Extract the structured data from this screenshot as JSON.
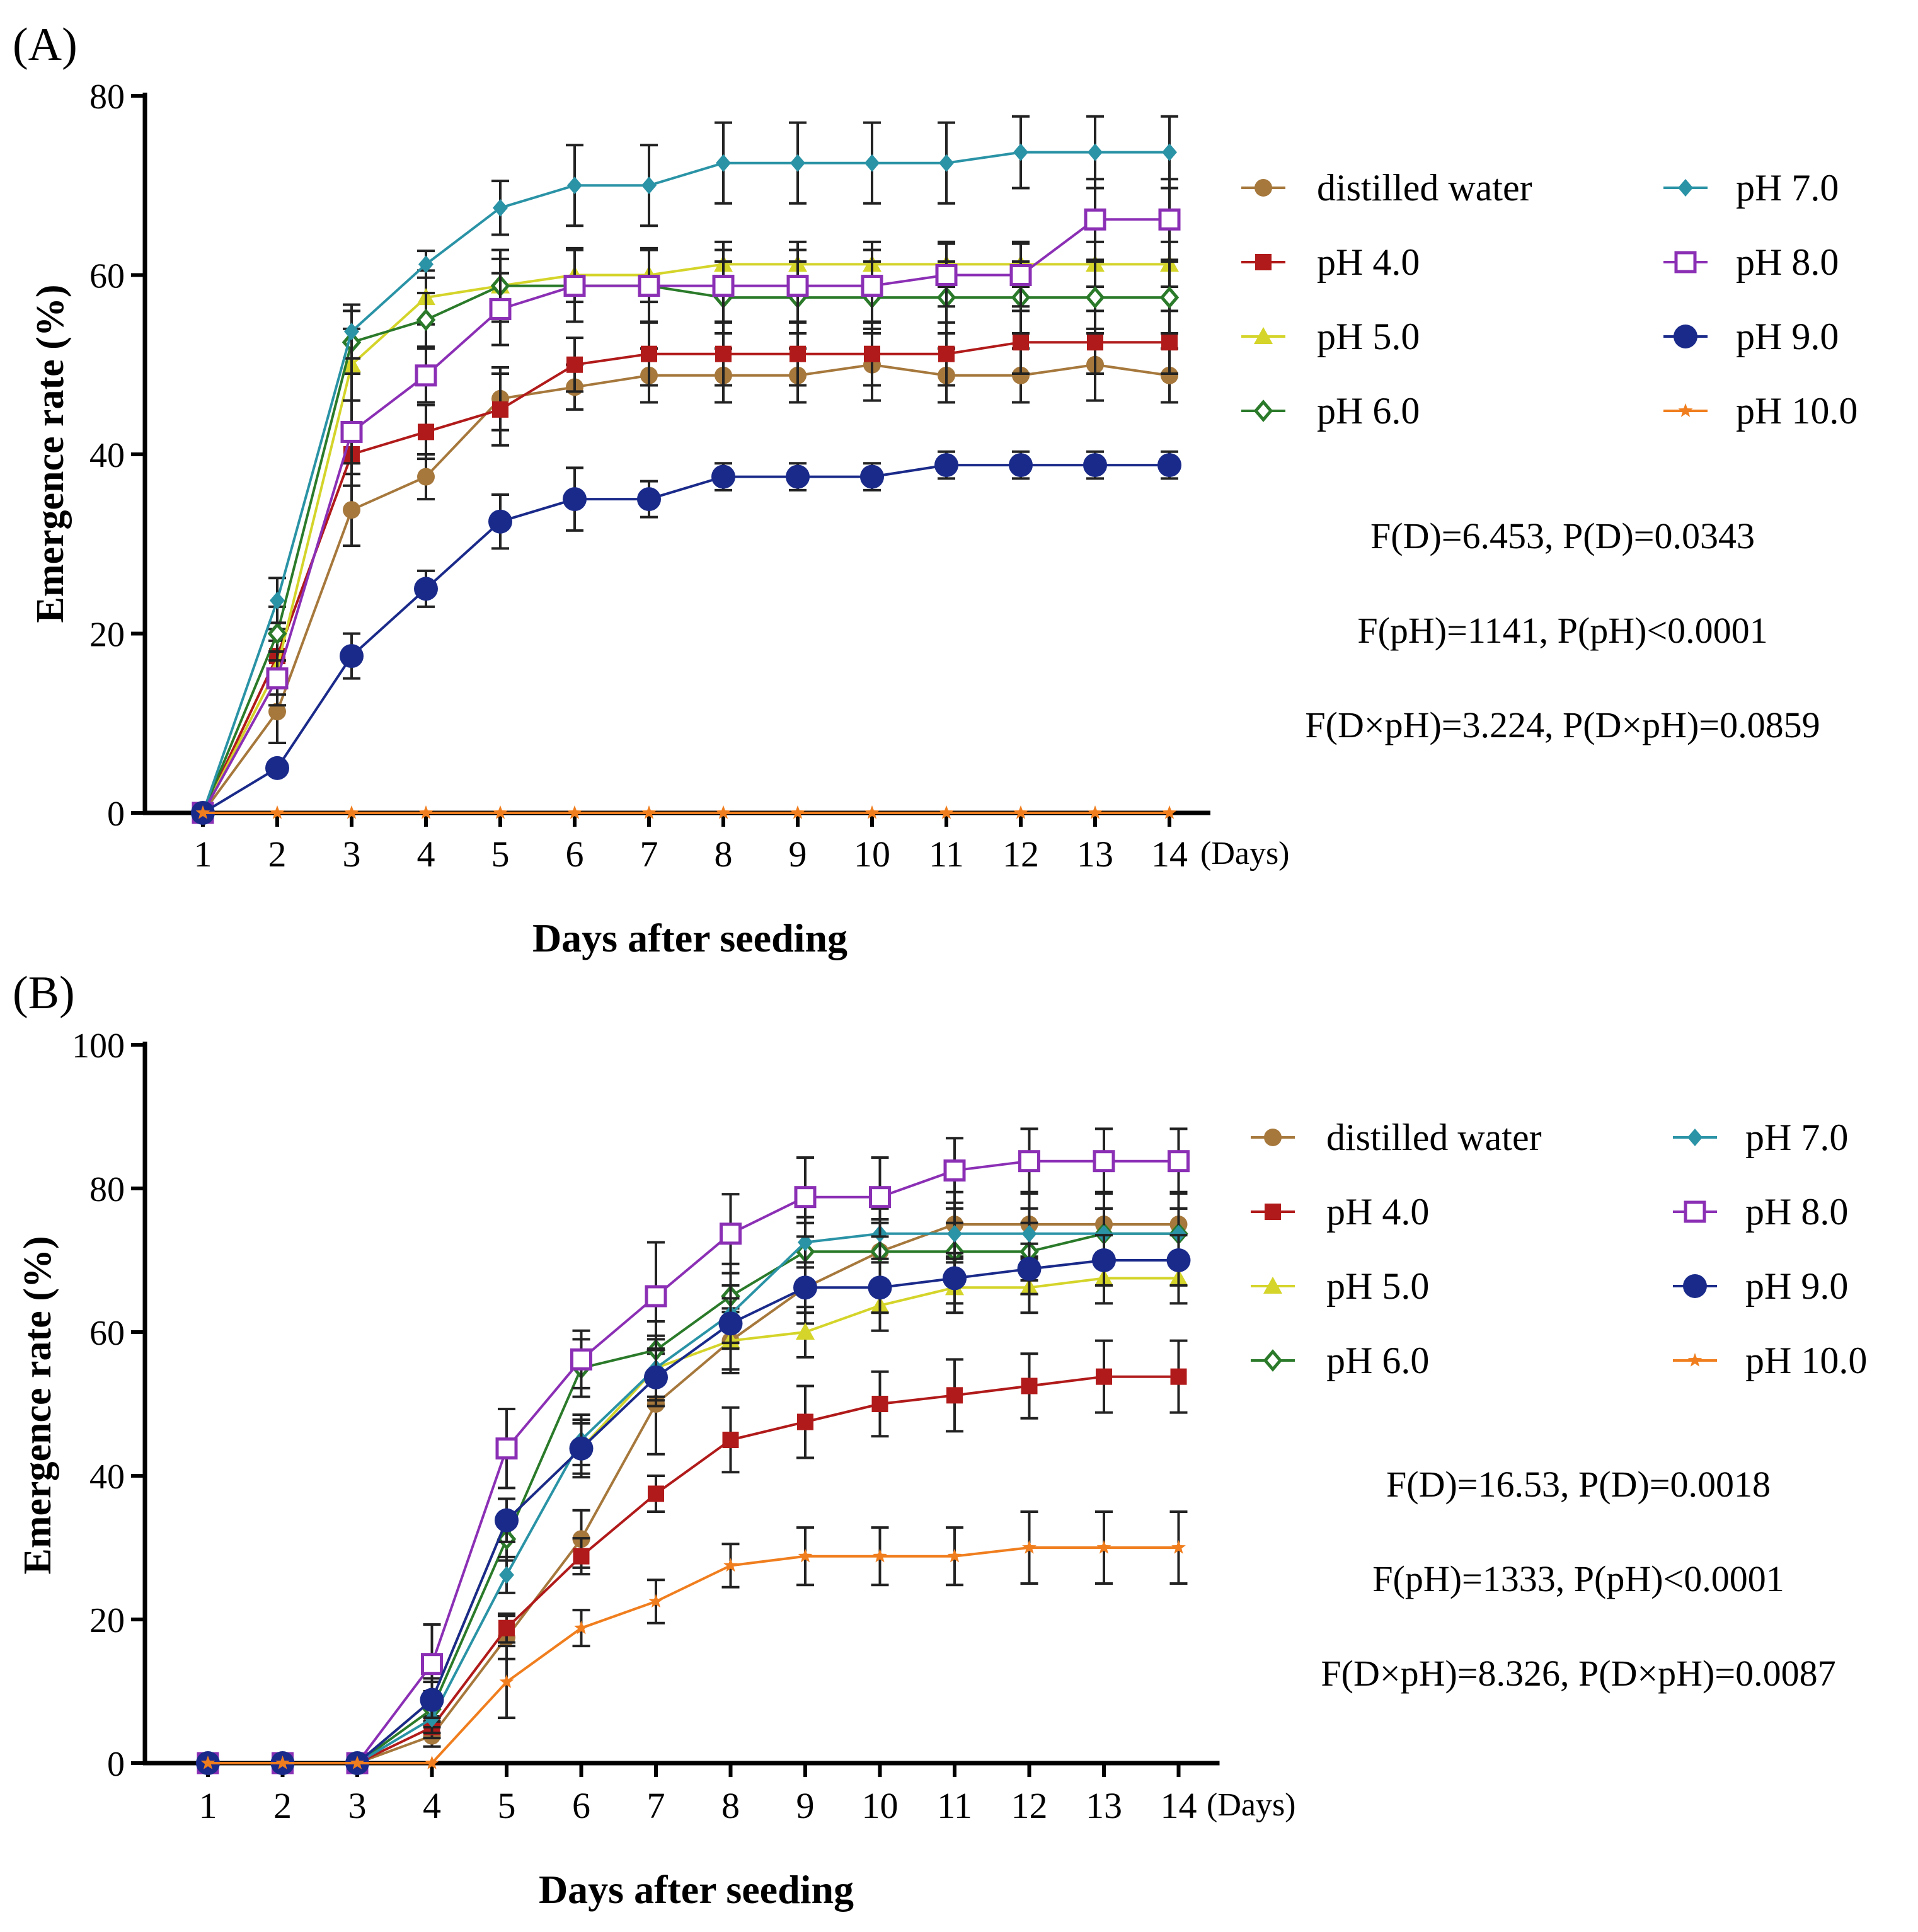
{
  "chart_data": [
    {
      "panel_label": "(A)",
      "type": "line",
      "title": "",
      "xlabel": "Days after seeding",
      "x_unit": "(Days)",
      "ylabel": "Emergence rate (%)",
      "ylim": [
        0,
        80
      ],
      "yticks": [
        "0",
        "20",
        "40",
        "60",
        "80"
      ],
      "categories": [
        "1",
        "2",
        "3",
        "4",
        "5",
        "6",
        "7",
        "8",
        "9",
        "10",
        "11",
        "12",
        "13",
        "14"
      ],
      "series": [
        {
          "name": "distilled water",
          "color": "#a6783c",
          "marker": "circle",
          "values": [
            0,
            11.3,
            33.8,
            37.5,
            46.2,
            47.5,
            48.8,
            48.8,
            48.8,
            50,
            48.8,
            48.8,
            50,
            48.8
          ],
          "errors": [
            0,
            3.5,
            4.0,
            2.5,
            3.5,
            2.5,
            3.0,
            3.0,
            3.0,
            4.0,
            3.0,
            3.0,
            4.0,
            3.0
          ]
        },
        {
          "name": "pH 4.0",
          "color": "#b11a1a",
          "marker": "square",
          "values": [
            0,
            17.5,
            40,
            42.5,
            45,
            50,
            51.2,
            51.2,
            51.2,
            51.2,
            51.2,
            52.5,
            52.5,
            52.5
          ],
          "errors": [
            0,
            3.0,
            3.5,
            3.0,
            4.0,
            3.0,
            3.5,
            3.5,
            3.5,
            3.5,
            3.5,
            3.5,
            3.5,
            3.5
          ]
        },
        {
          "name": "pH 5.0",
          "color": "#d4d42a",
          "marker": "triangle",
          "values": [
            0,
            16.2,
            50,
            57.5,
            58.8,
            60,
            60,
            61.2,
            61.2,
            61.2,
            61.2,
            61.2,
            61.2,
            61.2
          ],
          "errors": [
            0,
            3.0,
            4.0,
            3.0,
            3.0,
            3.0,
            3.0,
            2.5,
            2.5,
            2.5,
            2.5,
            2.5,
            2.5,
            2.5
          ]
        },
        {
          "name": "pH 6.0",
          "color": "#2a7a2a",
          "marker": "diamond-open",
          "values": [
            0,
            20,
            52.5,
            55,
            58.8,
            58.8,
            58.8,
            57.5,
            57.5,
            57.5,
            57.5,
            57.5,
            57.5,
            57.5
          ],
          "errors": [
            0,
            3.0,
            3.5,
            3.0,
            4.0,
            4.0,
            4.0,
            4.0,
            4.0,
            4.0,
            4.0,
            4.0,
            4.0,
            4.0
          ]
        },
        {
          "name": "pH 7.0",
          "color": "#2a93a6",
          "marker": "diamond",
          "values": [
            0,
            23.7,
            53.7,
            61.2,
            67.5,
            70,
            70,
            72.5,
            72.5,
            72.5,
            72.5,
            73.7,
            73.7,
            73.7
          ],
          "errors": [
            0,
            2.5,
            3.0,
            1.5,
            3.0,
            4.5,
            4.5,
            4.5,
            4.5,
            4.5,
            4.5,
            4.0,
            4.0,
            4.0
          ]
        },
        {
          "name": "pH 8.0",
          "color": "#8b2fb5",
          "marker": "square-open",
          "values": [
            0,
            15,
            42.5,
            48.8,
            56.2,
            58.8,
            58.8,
            58.8,
            58.8,
            58.8,
            60,
            60,
            66.2,
            66.2
          ],
          "errors": [
            0,
            3.0,
            3.5,
            3.0,
            4.0,
            4.0,
            4.0,
            4.0,
            4.0,
            4.0,
            3.5,
            3.5,
            4.5,
            4.5
          ]
        },
        {
          "name": "pH 9.0",
          "color": "#1a2a8a",
          "marker": "circle-big",
          "values": [
            0,
            5,
            17.5,
            25,
            32.5,
            35,
            35,
            37.5,
            37.5,
            37.5,
            38.8,
            38.8,
            38.8,
            38.8
          ],
          "errors": [
            0,
            0,
            2.5,
            2.0,
            3.0,
            3.5,
            2.0,
            1.5,
            1.5,
            1.5,
            1.5,
            1.5,
            1.5,
            1.5
          ]
        },
        {
          "name": "pH 10.0",
          "color": "#f07e1e",
          "marker": "star",
          "values": [
            0,
            0,
            0,
            0,
            0,
            0,
            0,
            0,
            0,
            0,
            0,
            0,
            0,
            0
          ],
          "errors": [
            0,
            0,
            0,
            0,
            0,
            0,
            0,
            0,
            0,
            0,
            0,
            0,
            0,
            0
          ]
        }
      ],
      "annotations": [
        "F(D)=6.453, P(D)=0.0343",
        "F(pH)=1141, P(pH)<0.0001",
        "F(D×pH)=3.224, P(D×pH)=0.0859"
      ]
    },
    {
      "panel_label": "(B)",
      "type": "line",
      "title": "",
      "xlabel": "Days after seeding",
      "x_unit": "(Days)",
      "ylabel": "Emergence rate (%)",
      "ylim": [
        0,
        100
      ],
      "yticks": [
        "0",
        "20",
        "40",
        "60",
        "80",
        "100"
      ],
      "categories": [
        "1",
        "2",
        "3",
        "4",
        "5",
        "6",
        "7",
        "8",
        "9",
        "10",
        "11",
        "12",
        "13",
        "14"
      ],
      "series": [
        {
          "name": "distilled water",
          "color": "#a6783c",
          "marker": "circle",
          "values": [
            0,
            0,
            0,
            3.8,
            17.5,
            31.2,
            50,
            58.8,
            66.2,
            71.2,
            75,
            75,
            75,
            75
          ],
          "errors": [
            0,
            0,
            0,
            1.5,
            3.0,
            4.0,
            7.0,
            4.5,
            5.0,
            4.5,
            4.5,
            4.5,
            4.5,
            4.5
          ]
        },
        {
          "name": "pH 4.0",
          "color": "#b11a1a",
          "marker": "square",
          "values": [
            0,
            0,
            0,
            5,
            18.8,
            28.8,
            37.5,
            45,
            47.5,
            50,
            51.2,
            52.5,
            53.8,
            53.8
          ],
          "errors": [
            0,
            0,
            0,
            1.5,
            2.0,
            2.5,
            2.5,
            4.5,
            5.0,
            4.5,
            5.0,
            4.5,
            5.0,
            5.0
          ]
        },
        {
          "name": "pH 5.0",
          "color": "#d4d42a",
          "marker": "triangle",
          "values": [
            0,
            0,
            0,
            8.8,
            33.8,
            43.8,
            55,
            58.8,
            60,
            63.7,
            66.2,
            66.2,
            67.5,
            67.5
          ],
          "errors": [
            0,
            0,
            0,
            3.0,
            3.0,
            4.0,
            4.5,
            4.0,
            3.5,
            3.5,
            3.5,
            3.5,
            3.5,
            3.5
          ]
        },
        {
          "name": "pH 6.0",
          "color": "#2a7a2a",
          "marker": "diamond-open",
          "values": [
            0,
            0,
            0,
            7.5,
            31.2,
            55,
            57.5,
            65,
            71.2,
            71.2,
            71.2,
            71.2,
            73.7,
            73.7
          ],
          "errors": [
            0,
            0,
            0,
            2.5,
            3.0,
            4.0,
            4.0,
            4.5,
            4.0,
            4.0,
            4.0,
            4.0,
            3.5,
            3.5
          ]
        },
        {
          "name": "pH 7.0",
          "color": "#2a93a6",
          "marker": "diamond",
          "values": [
            0,
            0,
            0,
            6.2,
            26.2,
            45,
            55,
            62.5,
            72.5,
            73.7,
            73.7,
            73.7,
            73.7,
            73.7
          ],
          "errors": [
            0,
            0,
            0,
            2.0,
            2.5,
            3.5,
            4.0,
            4.0,
            3.5,
            3.5,
            3.5,
            3.5,
            3.5,
            3.5
          ]
        },
        {
          "name": "pH 8.0",
          "color": "#8b2fb5",
          "marker": "square-open",
          "values": [
            0,
            0,
            0,
            13.8,
            43.8,
            56.2,
            65,
            73.7,
            78.8,
            78.8,
            82.5,
            83.8,
            83.8,
            83.8
          ],
          "errors": [
            0,
            0,
            0,
            5.5,
            5.5,
            4.0,
            7.5,
            5.5,
            5.5,
            5.5,
            4.5,
            4.5,
            4.5,
            4.5
          ]
        },
        {
          "name": "pH 9.0",
          "color": "#1a2a8a",
          "marker": "circle-big",
          "values": [
            0,
            0,
            0,
            8.8,
            33.8,
            43.8,
            53.7,
            61.2,
            66.2,
            66.2,
            67.5,
            68.8,
            70,
            70
          ],
          "errors": [
            0,
            0,
            0,
            2.5,
            3.0,
            3.5,
            4.0,
            3.5,
            3.5,
            3.5,
            3.5,
            3.5,
            3.5,
            3.5
          ]
        },
        {
          "name": "pH 10.0",
          "color": "#f07e1e",
          "marker": "star",
          "values": [
            0,
            0,
            0,
            0,
            11.3,
            18.8,
            22.5,
            27.5,
            28.8,
            28.8,
            28.8,
            30,
            30,
            30
          ],
          "errors": [
            0,
            0,
            0,
            0,
            5.0,
            2.5,
            3.0,
            3.0,
            4.0,
            4.0,
            4.0,
            5.0,
            5.0,
            5.0
          ]
        }
      ],
      "annotations": [
        "F(D)=16.53, P(D)=0.0018",
        "F(pH)=1333, P(pH)<0.0001",
        "F(D×pH)=8.326, P(D×pH)=0.0087"
      ]
    }
  ]
}
